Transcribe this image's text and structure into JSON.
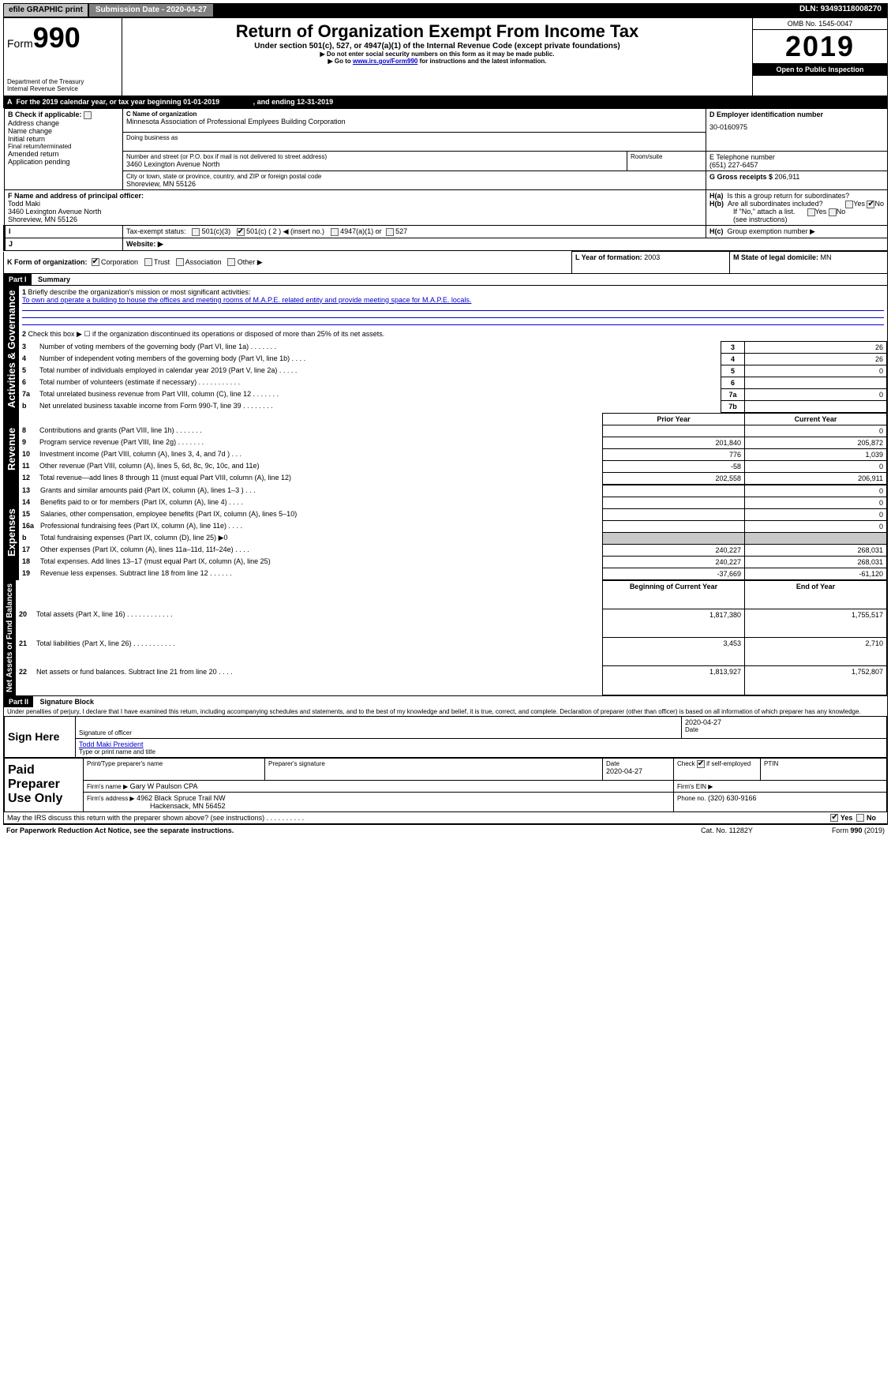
{
  "topbar": {
    "efile": "efile GRAPHIC print",
    "submission": "Submission Date - 2020-04-27",
    "dln": "DLN: 93493118008270"
  },
  "header": {
    "form_label": "Form",
    "form_number": "990",
    "dept": "Department of the Treasury",
    "irs": "Internal Revenue Service",
    "title": "Return of Organization Exempt From Income Tax",
    "subtitle": "Under section 501(c), 527, or 4947(a)(1) of the Internal Revenue Code (except private foundations)",
    "note1": "▶ Do not enter social security numbers on this form as it may be made public.",
    "note2_prefix": "▶ Go to ",
    "note2_link": "www.irs.gov/Form990",
    "note2_suffix": " for instructions and the latest information.",
    "omb": "OMB No. 1545-0047",
    "year": "2019",
    "open": "Open to Public Inspection"
  },
  "A": {
    "text": "For the 2019 calendar year, or tax year beginning 01-01-2019",
    "ending": ", and ending 12-31-2019"
  },
  "B": {
    "label": "Check if applicable:",
    "items": [
      "Address change",
      "Name change",
      "Initial return",
      "Final return/terminated",
      "Amended return",
      "Application pending"
    ]
  },
  "C": {
    "name_label": "C Name of organization",
    "name": "Minnesota Association of Professional Emplyees Building Corporation",
    "dba_label": "Doing business as",
    "street_label": "Number and street (or P.O. box if mail is not delivered to street address)",
    "street": "3460 Lexington Avenue North",
    "room_label": "Room/suite",
    "city_label": "City or town, state or province, country, and ZIP or foreign postal code",
    "city": "Shoreview, MN  55126"
  },
  "D": {
    "label": "D Employer identification number",
    "value": "30-0160975"
  },
  "E": {
    "label": "E Telephone number",
    "value": "(651) 227-6457"
  },
  "G": {
    "label": "G Gross receipts $ ",
    "value": "206,911"
  },
  "F": {
    "label": "F Name and address of principal officer:",
    "name": "Todd Maki",
    "addr1": "3460 Lexington Avenue North",
    "addr2": "Shoreview, MN  55126"
  },
  "H": {
    "a": "Is this a group return for subordinates?",
    "b": "Are all subordinates included?",
    "b_note": "If \"No,\" attach a list. (see instructions)",
    "c": "Group exemption number ▶",
    "yes": "Yes",
    "no": "No"
  },
  "I": {
    "label": "Tax-exempt status:",
    "opts": [
      "501(c)(3)",
      "501(c) ( 2 ) ◀ (insert no.)",
      "4947(a)(1) or",
      "527"
    ]
  },
  "J": {
    "label": "Website: ▶"
  },
  "K": {
    "label": "K Form of organization:",
    "opts": [
      "Corporation",
      "Trust",
      "Association",
      "Other ▶"
    ]
  },
  "L": {
    "label": "L Year of formation:",
    "value": "2003"
  },
  "M": {
    "label": "M State of legal domicile:",
    "value": "MN"
  },
  "partI": {
    "header": "Part I",
    "title": "Summary",
    "line1_label": "Briefly describe the organization's mission or most significant activities:",
    "line1_text": "To own and operate a building to house the offices and meeting rooms of M.A.P.E. related entity and provide meeting space for M.A.P.E. locals.",
    "line2": "Check this box ▶ ☐ if the organization discontinued its operations or disposed of more than 25% of its net assets.",
    "lines": [
      {
        "n": "3",
        "t": "Number of voting members of the governing body (Part VI, line 1a)  .    .    .    .    .    .    .",
        "c": "3",
        "v": "26"
      },
      {
        "n": "4",
        "t": "Number of independent voting members of the governing body (Part VI, line 1b)  .    .    .    .",
        "c": "4",
        "v": "26"
      },
      {
        "n": "5",
        "t": "Total number of individuals employed in calendar year 2019 (Part V, line 2a)  .    .    .    .    .",
        "c": "5",
        "v": "0"
      },
      {
        "n": "6",
        "t": "Total number of volunteers (estimate if necessary)   .    .    .    .    .    .    .    .    .    .    .",
        "c": "6",
        "v": ""
      },
      {
        "n": "7a",
        "t": "Total unrelated business revenue from Part VIII, column (C), line 12  .    .    .    .    .    .    .",
        "c": "7a",
        "v": "0"
      },
      {
        "n": "b",
        "t": "Net unrelated business taxable income from Form 990-T, line 39   .    .    .    .    .    .    .    .",
        "c": "7b",
        "v": ""
      }
    ],
    "prior_year": "Prior Year",
    "current_year": "Current Year",
    "revenue": [
      {
        "n": "8",
        "t": "Contributions and grants (Part VIII, line 1h)  .    .    .    .    .    .    .",
        "p": "",
        "c": "0"
      },
      {
        "n": "9",
        "t": "Program service revenue (Part VIII, line 2g)  .    .    .    .    .    .    .",
        "p": "201,840",
        "c": "205,872"
      },
      {
        "n": "10",
        "t": "Investment income (Part VIII, column (A), lines 3, 4, and 7d )  .    .    .",
        "p": "776",
        "c": "1,039"
      },
      {
        "n": "11",
        "t": "Other revenue (Part VIII, column (A), lines 5, 6d, 8c, 9c, 10c, and 11e)",
        "p": "-58",
        "c": "0"
      },
      {
        "n": "12",
        "t": "Total revenue—add lines 8 through 11 (must equal Part VIII, column (A), line 12)",
        "p": "202,558",
        "c": "206,911"
      }
    ],
    "expenses": [
      {
        "n": "13",
        "t": "Grants and similar amounts paid (Part IX, column (A), lines 1–3 )  .    .    .",
        "p": "",
        "c": "0"
      },
      {
        "n": "14",
        "t": "Benefits paid to or for members (Part IX, column (A), line 4)  .    .    .    .",
        "p": "",
        "c": "0"
      },
      {
        "n": "15",
        "t": "Salaries, other compensation, employee benefits (Part IX, column (A), lines 5–10)",
        "p": "",
        "c": "0"
      },
      {
        "n": "16a",
        "t": "Professional fundraising fees (Part IX, column (A), line 11e)  .    .    .    .",
        "p": "",
        "c": "0"
      },
      {
        "n": "b",
        "t": "Total fundraising expenses (Part IX, column (D), line 25) ▶0",
        "p": "shade",
        "c": "shade"
      },
      {
        "n": "17",
        "t": "Other expenses (Part IX, column (A), lines 11a–11d, 11f–24e)  .    .    .    .",
        "p": "240,227",
        "c": "268,031"
      },
      {
        "n": "18",
        "t": "Total expenses. Add lines 13–17 (must equal Part IX, column (A), line 25)",
        "p": "240,227",
        "c": "268,031"
      },
      {
        "n": "19",
        "t": "Revenue less expenses. Subtract line 18 from line 12  .    .    .    .    .    .",
        "p": "-37,669",
        "c": "-61,120"
      }
    ],
    "beg_year": "Beginning of Current Year",
    "end_year": "End of Year",
    "netassets": [
      {
        "n": "20",
        "t": "Total assets (Part X, line 16)  .    .    .    .    .    .    .    .    .    .    .    .",
        "p": "1,817,380",
        "c": "1,755,517"
      },
      {
        "n": "21",
        "t": "Total liabilities (Part X, line 26)  .    .    .    .    .    .    .    .    .    .    .",
        "p": "3,453",
        "c": "2,710"
      },
      {
        "n": "22",
        "t": "Net assets or fund balances. Subtract line 21 from line 20  .    .    .    .",
        "p": "1,813,927",
        "c": "1,752,807"
      }
    ],
    "vlabels": {
      "gov": "Activities & Governance",
      "rev": "Revenue",
      "exp": "Expenses",
      "net": "Net Assets or Fund Balances"
    }
  },
  "partII": {
    "header": "Part II",
    "title": "Signature Block",
    "perjury": "Under penalties of perjury, I declare that I have examined this return, including accompanying schedules and statements, and to the best of my knowledge and belief, it is true, correct, and complete. Declaration of preparer (other than officer) is based on all information of which preparer has any knowledge.",
    "sign_here": "Sign Here",
    "sig_officer": "Signature of officer",
    "date": "Date",
    "date_val": "2020-04-27",
    "name_title": "Todd Maki  President",
    "name_title_label": "Type or print name and title",
    "paid": "Paid Preparer Use Only",
    "prep_name_label": "Print/Type preparer's name",
    "prep_sig_label": "Preparer's signature",
    "prep_date_label": "Date",
    "prep_date": "2020-04-27",
    "check_label": "Check ☑ if self-employed",
    "ptin_label": "PTIN",
    "firm_name_label": "Firm's name    ▶",
    "firm_name": "Gary W Paulson CPA",
    "firm_ein_label": "Firm's EIN ▶",
    "firm_addr_label": "Firm's address ▶",
    "firm_addr1": "4962 Black Spruce Trail NW",
    "firm_addr2": "Hackensack, MN  56452",
    "phone_label": "Phone no.",
    "phone": "(320) 630-9166",
    "discuss": "May the IRS discuss this return with the preparer shown above? (see instructions)   .    .    .    .    .    .    .    .    .    .",
    "paperwork": "For Paperwork Reduction Act Notice, see the separate instructions.",
    "catno": "Cat. No. 11282Y",
    "formfoot": "Form 990 (2019)"
  }
}
